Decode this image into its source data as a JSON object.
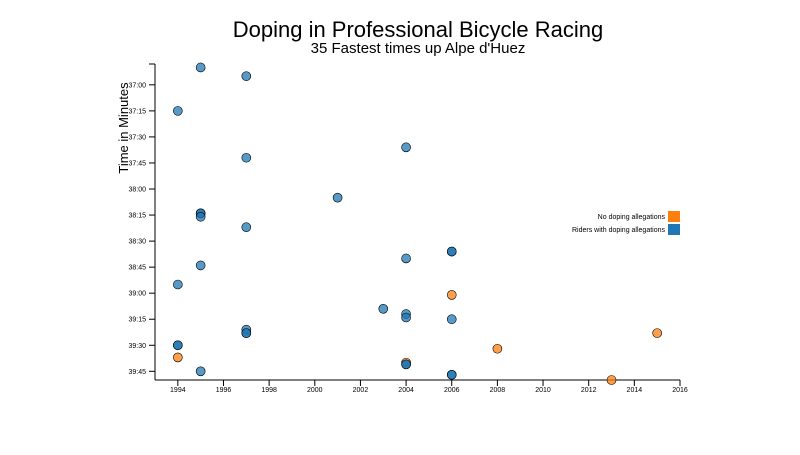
{
  "chart_data": {
    "type": "scatter",
    "title": "Doping in Professional Bicycle Racing",
    "subtitle": "35 Fastest times up Alpe d'Huez",
    "ylabel": "Time in Minutes",
    "xlabel": "",
    "xlim": [
      1993,
      2016
    ],
    "ylim": [
      "36:48",
      "39:50"
    ],
    "y_reversed": true,
    "x_ticks": [
      "1994",
      "1996",
      "1998",
      "2000",
      "2002",
      "2004",
      "2006",
      "2008",
      "2010",
      "2012",
      "2014",
      "2016"
    ],
    "y_ticks": [
      "37:00",
      "37:15",
      "37:30",
      "37:45",
      "38:00",
      "38:15",
      "38:30",
      "38:45",
      "39:00",
      "39:15",
      "39:30",
      "39:45"
    ],
    "grid": false,
    "legend_position": "right",
    "legend": [
      {
        "label": "No doping allegations",
        "color": "#ff7f0e"
      },
      {
        "label": "Riders with doping allegations",
        "color": "#1f77b4"
      }
    ],
    "points": [
      {
        "year": 1995,
        "time": "36:50",
        "doping": true
      },
      {
        "year": 1997,
        "time": "36:55",
        "doping": true
      },
      {
        "year": 1994,
        "time": "37:15",
        "doping": true
      },
      {
        "year": 2004,
        "time": "37:36",
        "doping": true
      },
      {
        "year": 1997,
        "time": "37:42",
        "doping": true
      },
      {
        "year": 2001,
        "time": "38:05",
        "doping": true
      },
      {
        "year": 1995,
        "time": "38:14",
        "doping": true
      },
      {
        "year": 1995,
        "time": "38:14",
        "doping": true
      },
      {
        "year": 1995,
        "time": "38:16",
        "doping": true
      },
      {
        "year": 1997,
        "time": "38:22",
        "doping": true
      },
      {
        "year": 2006,
        "time": "38:36",
        "doping": true
      },
      {
        "year": 2006,
        "time": "38:36",
        "doping": true
      },
      {
        "year": 2004,
        "time": "38:40",
        "doping": true
      },
      {
        "year": 1995,
        "time": "38:44",
        "doping": true
      },
      {
        "year": 1994,
        "time": "38:55",
        "doping": true
      },
      {
        "year": 2006,
        "time": "39:01",
        "doping": false
      },
      {
        "year": 2003,
        "time": "39:09",
        "doping": true
      },
      {
        "year": 2004,
        "time": "39:12",
        "doping": true
      },
      {
        "year": 2004,
        "time": "39:14",
        "doping": true
      },
      {
        "year": 2006,
        "time": "39:15",
        "doping": true
      },
      {
        "year": 1997,
        "time": "39:21",
        "doping": true
      },
      {
        "year": 1997,
        "time": "39:23",
        "doping": true
      },
      {
        "year": 1997,
        "time": "39:23",
        "doping": true
      },
      {
        "year": 2015,
        "time": "39:23",
        "doping": false
      },
      {
        "year": 1994,
        "time": "39:30",
        "doping": true
      },
      {
        "year": 1994,
        "time": "39:30",
        "doping": true
      },
      {
        "year": 2008,
        "time": "39:32",
        "doping": false
      },
      {
        "year": 1994,
        "time": "39:37",
        "doping": false
      },
      {
        "year": 2004,
        "time": "39:40",
        "doping": false
      },
      {
        "year": 2004,
        "time": "39:41",
        "doping": true
      },
      {
        "year": 2004,
        "time": "39:41",
        "doping": true
      },
      {
        "year": 1995,
        "time": "39:45",
        "doping": true
      },
      {
        "year": 2006,
        "time": "39:47",
        "doping": true
      },
      {
        "year": 2006,
        "time": "39:47",
        "doping": true
      },
      {
        "year": 2013,
        "time": "39:50",
        "doping": false
      }
    ]
  }
}
